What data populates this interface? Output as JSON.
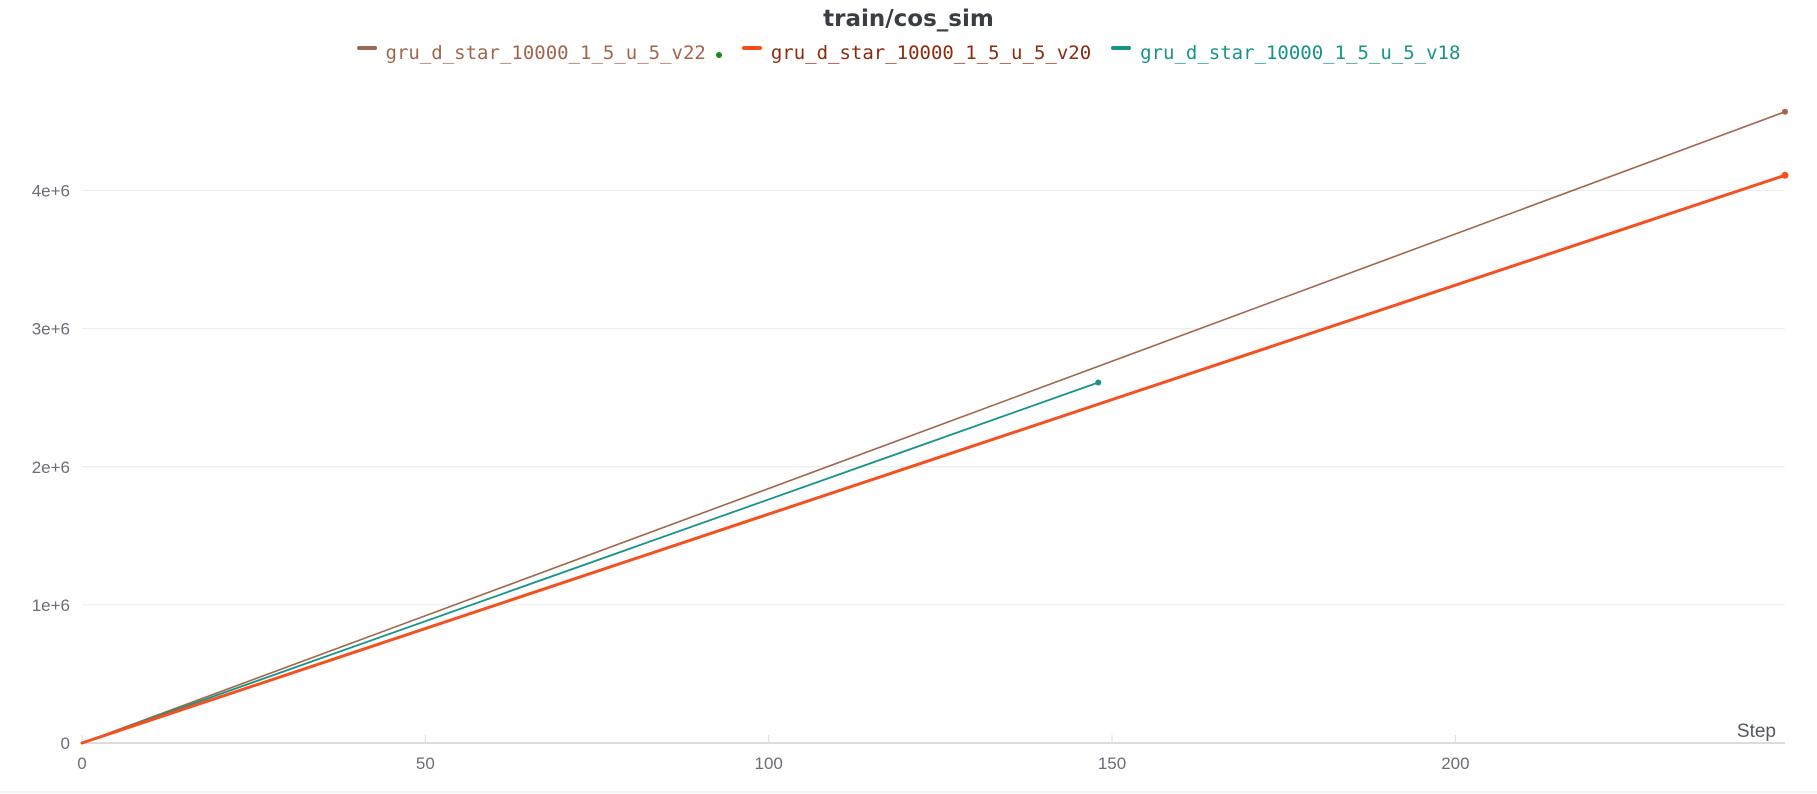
{
  "chart_data": {
    "type": "line",
    "title": "train/cos_sim",
    "xlabel": "Step",
    "ylabel": "",
    "xlim": [
      0,
      248
    ],
    "ylim": [
      0,
      4800000
    ],
    "x_ticks": [
      0,
      50,
      100,
      150,
      200
    ],
    "x_tick_labels": [
      "0",
      "50",
      "100",
      "150",
      "200"
    ],
    "y_ticks": [
      0,
      1000000,
      2000000,
      3000000,
      4000000
    ],
    "y_tick_labels": [
      "0",
      "1e+6",
      "2e+6",
      "3e+6",
      "4e+6"
    ],
    "grid": true,
    "legend_position": "top-center",
    "series": [
      {
        "name": "gru_d_star_10000_1_5_u_5_v22",
        "color": "#a0674b",
        "width": 1.6,
        "x": [
          0,
          248
        ],
        "y": [
          0,
          4570000
        ]
      },
      {
        "name": "gru_d_star_10000_1_5_u_5_v20",
        "color": "#f4511e",
        "width": 3,
        "x": [
          0,
          248
        ],
        "y": [
          0,
          4110000
        ]
      },
      {
        "name": "gru_d_star_10000_1_5_u_5_v18",
        "color": "#179488",
        "width": 1.8,
        "x": [
          0,
          148
        ],
        "y": [
          0,
          2610000
        ]
      }
    ],
    "legend_label_colors": [
      "#a0674b",
      "#8a2c0e",
      "#179488"
    ]
  }
}
